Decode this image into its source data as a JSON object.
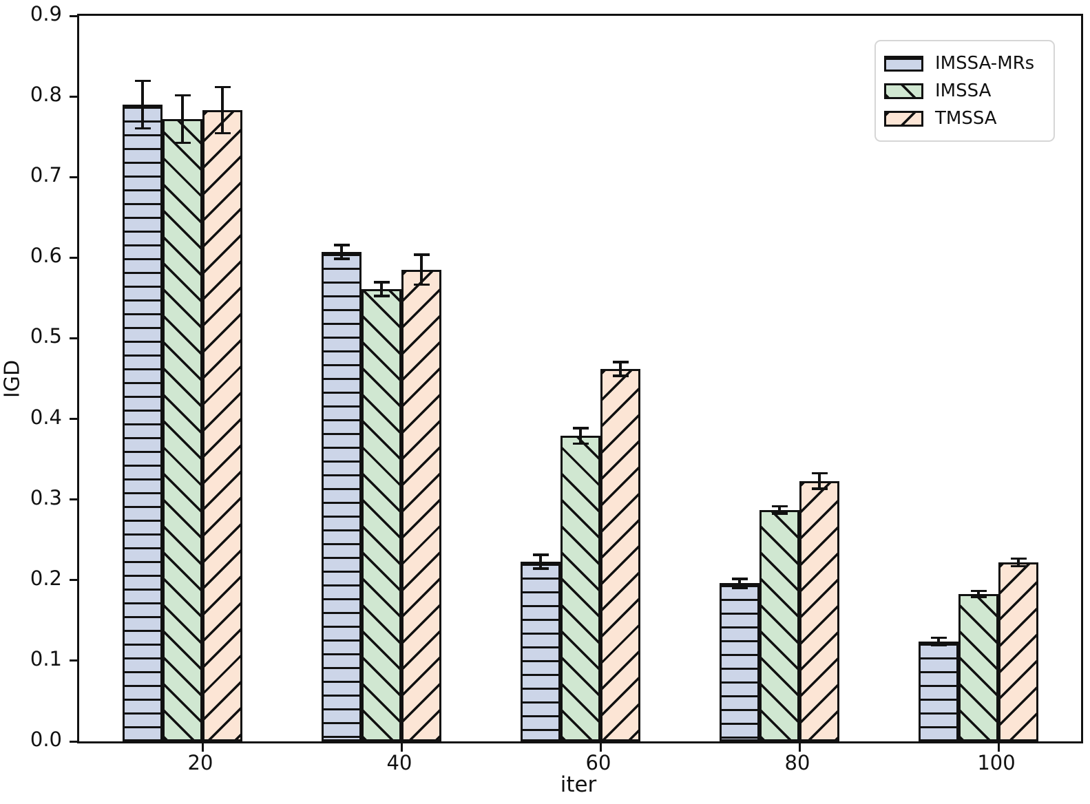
{
  "chart_data": {
    "type": "bar",
    "title": "",
    "xlabel": "iter",
    "ylabel": "IGD",
    "categories": [
      "20",
      "40",
      "60",
      "80",
      "100"
    ],
    "ylim": [
      0.0,
      0.9
    ],
    "yticks": [
      "0.0",
      "0.1",
      "0.2",
      "0.3",
      "0.4",
      "0.5",
      "0.6",
      "0.7",
      "0.8",
      "0.9"
    ],
    "grid": false,
    "legend_position": "upper right",
    "series": [
      {
        "name": "IMSSA-MRs",
        "color": "#ccd5e8",
        "hatch": "horizontal",
        "values": [
          0.79,
          0.607,
          0.223,
          0.196,
          0.124
        ],
        "errors": [
          0.031,
          0.01,
          0.01,
          0.007,
          0.006
        ]
      },
      {
        "name": "IMSSA",
        "color": "#d0e7d1",
        "hatch": "backslash",
        "values": [
          0.772,
          0.561,
          0.379,
          0.287,
          0.183
        ],
        "errors": [
          0.031,
          0.01,
          0.011,
          0.006,
          0.005
        ]
      },
      {
        "name": "TMSSA",
        "color": "#fce5d5",
        "hatch": "forwardslash",
        "values": [
          0.783,
          0.585,
          0.462,
          0.323,
          0.222
        ],
        "errors": [
          0.03,
          0.02,
          0.01,
          0.011,
          0.006
        ]
      }
    ]
  }
}
